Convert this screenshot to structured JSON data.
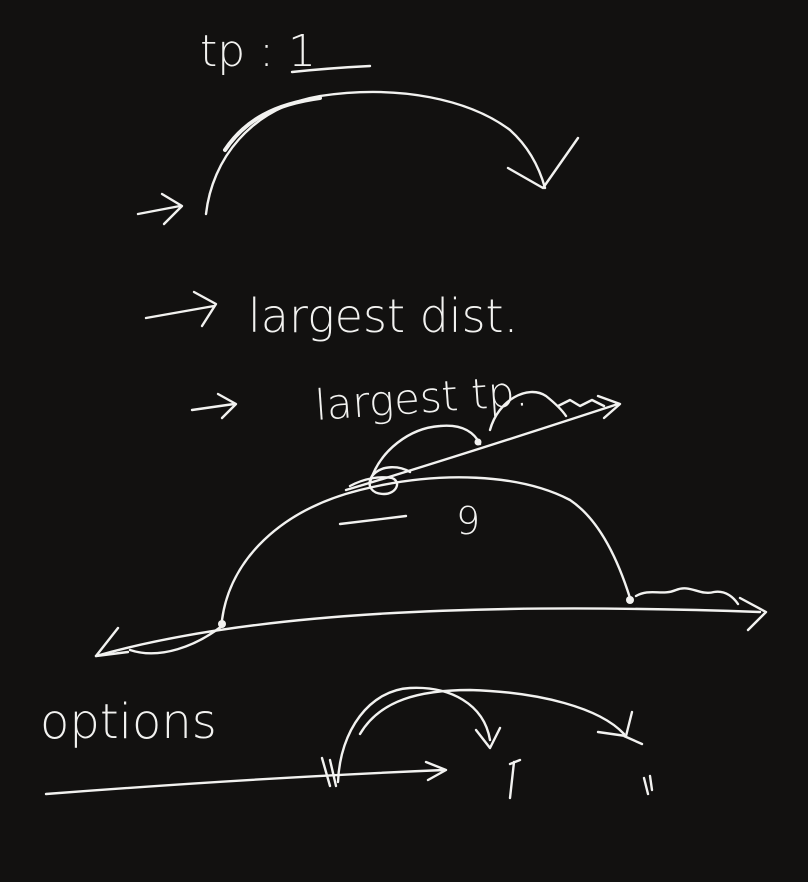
{
  "notes": {
    "tp_label": "tp : 1",
    "bullet_1": "largest dist.",
    "bullet_2": "largest tp.",
    "arc_value": "9",
    "section_label": "options"
  },
  "colors": {
    "background": "#121110",
    "ink": "#f2f2f0"
  }
}
